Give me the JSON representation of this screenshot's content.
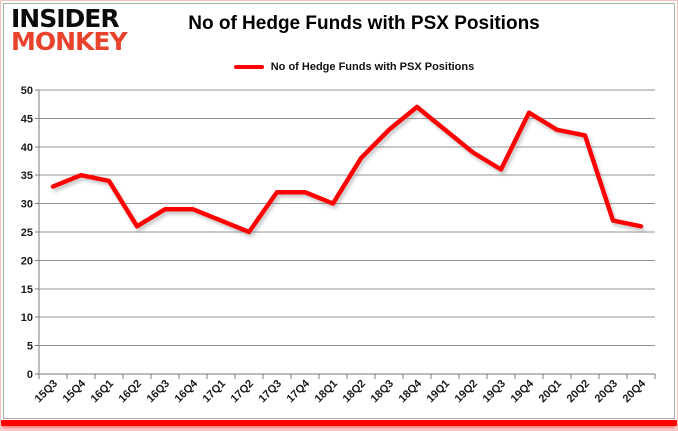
{
  "brand": {
    "line1": "INSIDER",
    "line2": "MONKEY"
  },
  "colors": {
    "line": "#ff0000",
    "brand_red": "#e8432d",
    "grid": "#949494",
    "axis": "#7a7a7a",
    "text": "#1a1a1a"
  },
  "chart_data": {
    "type": "line",
    "title": "No of Hedge Funds with PSX Positions",
    "categories": [
      "15Q3",
      "15Q4",
      "16Q1",
      "16Q2",
      "16Q3",
      "16Q4",
      "17Q1",
      "17Q2",
      "17Q3",
      "17Q4",
      "18Q1",
      "18Q2",
      "18Q3",
      "18Q4",
      "19Q1",
      "19Q2",
      "19Q3",
      "19Q4",
      "20Q1",
      "20Q2",
      "20Q3",
      "20Q4"
    ],
    "series": [
      {
        "name": "No of Hedge Funds with PSX Positions",
        "color": "#ff0000",
        "values": [
          33,
          35,
          34,
          26,
          29,
          29,
          27,
          25,
          32,
          32,
          30,
          38,
          43,
          47,
          43,
          39,
          36,
          46,
          43,
          42,
          27,
          26
        ]
      }
    ],
    "xlabel": "",
    "ylabel": "",
    "ylim": [
      0,
      50
    ],
    "ytick_step": 5,
    "grid": true,
    "legend_position": "top-center"
  }
}
